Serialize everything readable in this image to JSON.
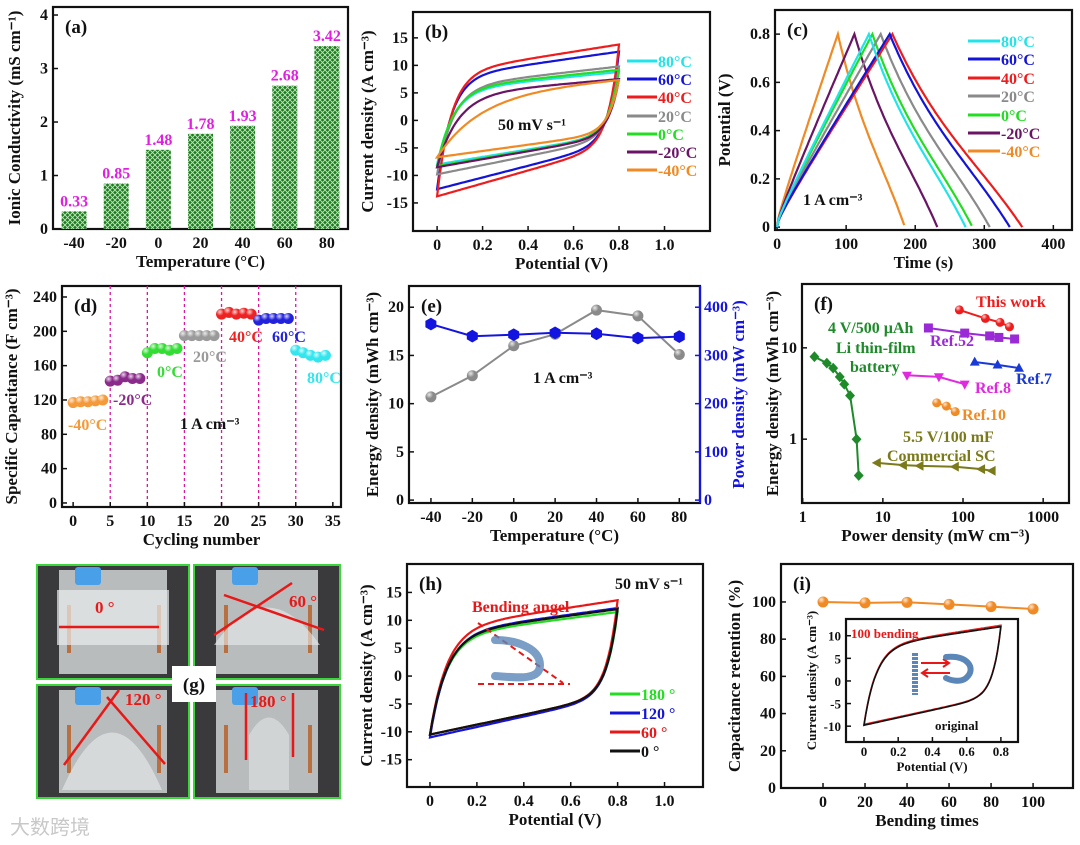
{
  "watermark": "大数跨境",
  "photo_panel": {
    "panel_label": "(g)",
    "angles": [
      "0 °",
      "60 °",
      "120 °",
      "180 °"
    ],
    "line_color": "#e81818",
    "frame_color": "#3ad63a"
  },
  "chart_data": [
    {
      "id": "a",
      "panel_label": "(a)",
      "type": "bar",
      "xlabel": "Temperature (°C)",
      "ylabel": "Ionic Conductivity (mS cm⁻¹)",
      "categories": [
        "-40",
        "-20",
        "0",
        "20",
        "40",
        "60",
        "80"
      ],
      "values": [
        0.33,
        0.85,
        1.48,
        1.78,
        1.93,
        2.68,
        3.42
      ],
      "value_labels": [
        "0.33",
        "0.85",
        "1.48",
        "1.78",
        "1.93",
        "2.68",
        "3.42"
      ],
      "ylim": [
        0,
        4.15
      ],
      "yticks": [
        "0",
        "1",
        "2",
        "3",
        "4"
      ],
      "bar_color": "#1d7a1d",
      "label_color": "#e01fe0"
    },
    {
      "id": "b",
      "panel_label": "(b)",
      "type": "cv",
      "xlabel": "Potential (V)",
      "ylabel": "Current density (A cm⁻³)",
      "xlim": [
        -0.106,
        1.2
      ],
      "ylim": [
        -20.1,
        19.7
      ],
      "xticks": [
        "0",
        "0.2",
        "0.4",
        "0.6",
        "0.8",
        "1.0"
      ],
      "yticks": [
        "-15",
        "-10",
        "-5",
        "0",
        "5",
        "10",
        "15"
      ],
      "legend": "right",
      "annotations": [
        {
          "text": "50 mV s⁻¹",
          "color": "#111111"
        }
      ],
      "series": [
        {
          "name": "80°C",
          "color": "#22e4e8",
          "i_max": 8.8,
          "i_min": -8.0,
          "tau_V": 0.07
        },
        {
          "name": "60°C",
          "color": "#1414d8",
          "i_max": 12.5,
          "i_min": -12.5,
          "tau_V": 0.06
        },
        {
          "name": "40°C",
          "color": "#ee1c1c",
          "i_max": 13.8,
          "i_min": -13.8,
          "tau_V": 0.06
        },
        {
          "name": "20°C",
          "color": "#8a8a8a",
          "i_max": 9.8,
          "i_min": -9.8,
          "tau_V": 0.07
        },
        {
          "name": "0°C",
          "color": "#22dd22",
          "i_max": 9.2,
          "i_min": -8.3,
          "tau_V": 0.07
        },
        {
          "name": "-20°C",
          "color": "#6a1466",
          "i_max": 7.5,
          "i_min": -8.5,
          "tau_V": 0.09
        },
        {
          "name": "-40°C",
          "color": "#f08a24",
          "i_max": 7.5,
          "i_min": -6.7,
          "tau_V": 0.18
        }
      ]
    },
    {
      "id": "c",
      "panel_label": "(c)",
      "type": "gcd",
      "xlabel": "Time (s)",
      "ylabel": "Potential (V)",
      "xlim": [
        -3,
        427
      ],
      "ylim": [
        -0.012,
        0.9
      ],
      "xticks": [
        "0",
        "100",
        "200",
        "300",
        "400"
      ],
      "yticks": [
        "0",
        "0.2",
        "0.4",
        "0.6",
        "0.8"
      ],
      "legend": "right",
      "annotations": [
        {
          "text": "1 A cm⁻³",
          "color": "#111111"
        }
      ],
      "series": [
        {
          "name": "80°C",
          "color": "#22e4e8",
          "t_peak": 133,
          "t_end": 273,
          "v_max": 0.8
        },
        {
          "name": "60°C",
          "color": "#1414d8",
          "t_peak": 163,
          "t_end": 337,
          "v_max": 0.8
        },
        {
          "name": "40°C",
          "color": "#ee1c1c",
          "t_peak": 167,
          "t_end": 355,
          "v_max": 0.8
        },
        {
          "name": "20°C",
          "color": "#8a8a8a",
          "t_peak": 150,
          "t_end": 308,
          "v_max": 0.8
        },
        {
          "name": "0°C",
          "color": "#22dd22",
          "t_peak": 138,
          "t_end": 283,
          "v_max": 0.8
        },
        {
          "name": "-20°C",
          "color": "#6a1466",
          "t_peak": 112,
          "t_end": 232,
          "v_max": 0.8
        },
        {
          "name": "-40°C",
          "color": "#f08a24",
          "t_peak": 88,
          "t_end": 185,
          "v_max": 0.8
        }
      ]
    },
    {
      "id": "d",
      "panel_label": "(d)",
      "type": "scatter",
      "xlabel": "Cycling number",
      "ylabel": "Specific Capacitance (F cm⁻³)",
      "xlim": [
        -1.5,
        36.1
      ],
      "ylim": [
        -4.7,
        252.8
      ],
      "xticks": [
        "0",
        "5",
        "10",
        "15",
        "20",
        "25",
        "30",
        "35"
      ],
      "yticks": [
        "0",
        "40",
        "80",
        "120",
        "160",
        "200",
        "240"
      ],
      "dividers": [
        5,
        10,
        15,
        20,
        25,
        30
      ],
      "divider_color": "#d61a9a",
      "annotations": [
        {
          "text": "1 A cm⁻³",
          "color": "#111111"
        }
      ],
      "series": [
        {
          "name": "-40°C",
          "color": "#f59a3a",
          "marker": "circle",
          "x": [
            0,
            1,
            2,
            3,
            4
          ],
          "y": [
            117,
            118,
            118,
            119,
            120
          ]
        },
        {
          "name": "-20°C",
          "color": "#8a2a8a",
          "marker": "circle",
          "x": [
            5,
            6,
            7,
            8,
            9
          ],
          "y": [
            142,
            143,
            147,
            145,
            145
          ]
        },
        {
          "name": "0°C",
          "color": "#33dd33",
          "marker": "circle",
          "x": [
            10,
            11,
            12,
            13,
            14
          ],
          "y": [
            175,
            180,
            180,
            178,
            180
          ]
        },
        {
          "name": "20°C",
          "color": "#9a9a9a",
          "marker": "circle",
          "x": [
            15,
            16,
            17,
            18,
            19
          ],
          "y": [
            195,
            195,
            195,
            195,
            195
          ]
        },
        {
          "name": "40°C",
          "color": "#ee2222",
          "marker": "circle",
          "x": [
            20,
            21,
            22,
            23,
            24
          ],
          "y": [
            220,
            222,
            220,
            221,
            220
          ]
        },
        {
          "name": "60°C",
          "color": "#2222dd",
          "marker": "circle",
          "x": [
            25,
            26,
            27,
            28,
            29
          ],
          "y": [
            213,
            215,
            215,
            215,
            215
          ]
        },
        {
          "name": "80°C",
          "color": "#33e6ee",
          "marker": "circle",
          "x": [
            30,
            31,
            32,
            33,
            34
          ],
          "y": [
            178,
            175,
            172,
            170,
            172
          ]
        }
      ]
    },
    {
      "id": "e",
      "panel_label": "(e)",
      "type": "line",
      "xlabel": "Temperature (°C)",
      "ylabel": "Energy density (mWh cm⁻³)",
      "y2label": "Power density (mW cm⁻³)",
      "xlim": [
        -50.6,
        90
      ],
      "ylim": [
        -0.3,
        22.2
      ],
      "y2lim": [
        -6,
        444
      ],
      "xticks": [
        "-40",
        "-20",
        "0",
        "20",
        "40",
        "60",
        "80"
      ],
      "yticks": [
        "0",
        "5",
        "10",
        "15",
        "20"
      ],
      "y2ticks": [
        "0",
        "100",
        "200",
        "300",
        "400"
      ],
      "y2color": "#1414e0",
      "annotations": [
        {
          "text": "1 A cm⁻³",
          "color": "#111111"
        }
      ],
      "series": [
        {
          "name": "Energy density",
          "color": "#8a8a8a",
          "marker": "circle",
          "axis": "left",
          "x": [
            -40,
            -20,
            0,
            20,
            40,
            60,
            80
          ],
          "y": [
            10.7,
            12.9,
            16.0,
            17.2,
            19.7,
            19.1,
            15.1
          ]
        },
        {
          "name": "Power density",
          "color": "#1414e0",
          "marker": "hexagon",
          "axis": "right",
          "x": [
            -40,
            -20,
            0,
            20,
            40,
            60,
            80
          ],
          "y": [
            365,
            340,
            343,
            347,
            345,
            336,
            339
          ]
        }
      ]
    },
    {
      "id": "f",
      "panel_label": "(f)",
      "type": "line",
      "xlabel": "Power density (mW cm⁻³)",
      "ylabel": "Energy density (mWh cm⁻³)",
      "xscale": "log",
      "yscale": "log",
      "xlim": [
        0.98,
        2100
      ],
      "ylim": [
        0.2,
        50
      ],
      "xticks": [
        "1",
        "10",
        "100",
        "1000"
      ],
      "yticks": [
        "1",
        "10"
      ],
      "series": [
        {
          "name": "This work",
          "label_lines": [
            "This work"
          ],
          "color": "#ee1c1c",
          "marker": "circle",
          "x": [
            90,
            190,
            290,
            380
          ],
          "y": [
            26,
            21,
            19,
            17
          ]
        },
        {
          "name": "Ref.52",
          "label_lines": [
            "Ref.52"
          ],
          "color": "#9a2ad6",
          "marker": "square",
          "x": [
            37,
            105,
            215,
            280,
            440
          ],
          "y": [
            16.5,
            14.5,
            13.5,
            13,
            12.5
          ]
        },
        {
          "name": "Ref.7",
          "label_lines": [
            "Ref.7"
          ],
          "color": "#1a3ad6",
          "marker": "triangle-up",
          "x": [
            140,
            270,
            500
          ],
          "y": [
            7,
            6.5,
            6
          ]
        },
        {
          "name": "Ref.8",
          "label_lines": [
            "Ref.8"
          ],
          "color": "#e02ae0",
          "marker": "triangle-down",
          "x": [
            20,
            50,
            105
          ],
          "y": [
            5,
            4.8,
            4
          ]
        },
        {
          "name": "Ref.10",
          "label_lines": [
            "Ref.10"
          ],
          "color": "#f08a24",
          "marker": "circle",
          "x": [
            47,
            62,
            80
          ],
          "y": [
            2.5,
            2.3,
            2
          ]
        },
        {
          "name": "4 V/500 µAh Li thin-film battery",
          "label_lines": [
            "4 V/500 µAh",
            "Li thin-film",
            "battery"
          ],
          "color": "#1e8a2a",
          "marker": "diamond",
          "x": [
            1.4,
            2,
            2.4,
            2.9,
            3.3,
            3.9,
            4.7,
            5
          ],
          "y": [
            8,
            6.8,
            6,
            4.8,
            4,
            3,
            1,
            0.4
          ]
        },
        {
          "name": "5.5 V/100 mF Commercial SC",
          "label_lines": [
            "5.5 V/100 mF",
            "Commercial SC"
          ],
          "color": "#7a7a1a",
          "marker": "triangle-left",
          "x": [
            8.5,
            18,
            29,
            80,
            170,
            230
          ],
          "y": [
            0.55,
            0.52,
            0.51,
            0.5,
            0.47,
            0.45
          ]
        }
      ]
    },
    {
      "id": "h",
      "panel_label": "(h)",
      "type": "cv",
      "xlabel": "Potential (V)",
      "ylabel": "Current density (A cm⁻³)",
      "xlim": [
        -0.098,
        1.164
      ],
      "ylim": [
        -19.9,
        20.1
      ],
      "xticks": [
        "0",
        "0.2",
        "0.4",
        "0.6",
        "0.8",
        "1.0"
      ],
      "yticks": [
        "-15",
        "-10",
        "-5",
        "0",
        "5",
        "10",
        "15"
      ],
      "legend": "bottom-right",
      "annotations": [
        {
          "text": "50 mV s⁻¹",
          "color": "#111111"
        },
        {
          "text": "Bending angel",
          "color": "#e81818"
        }
      ],
      "series": [
        {
          "name": "180 °",
          "color": "#22dd22",
          "i_max": 11.5,
          "i_min": -10.5,
          "tau_V": 0.07
        },
        {
          "name": "120 °",
          "color": "#1414d8",
          "i_max": 12.2,
          "i_min": -11.0,
          "tau_V": 0.07
        },
        {
          "name": "60 °",
          "color": "#e81818",
          "i_max": 13.6,
          "i_min": -10.5,
          "tau_V": 0.07
        },
        {
          "name": "0 °",
          "color": "#111111",
          "i_max": 12.0,
          "i_min": -10.5,
          "tau_V": 0.07
        }
      ]
    },
    {
      "id": "i",
      "panel_label": "(i)",
      "type": "line",
      "xlabel": "Bending times",
      "ylabel": "Capacitance  retention (%)",
      "xlim": [
        -20,
        119
      ],
      "ylim": [
        0,
        120.4
      ],
      "xticks": [
        "0",
        "20",
        "40",
        "60",
        "80",
        "100"
      ],
      "yticks": [
        "0",
        "20",
        "40",
        "60",
        "80",
        "100"
      ],
      "series": [
        {
          "name": "Capacitance retention",
          "color": "#f08a24",
          "marker": "circle",
          "x": [
            0,
            20,
            40,
            60,
            80,
            100
          ],
          "y": [
            100,
            99.5,
            99.8,
            98.7,
            97.5,
            96.2
          ]
        }
      ]
    },
    {
      "id": "iin",
      "panel_label": "",
      "type": "cv",
      "inset_of": "i",
      "xlabel": "Potential (V)",
      "ylabel": "Current density (A cm⁻³)",
      "xlim": [
        -0.105,
        0.9
      ],
      "ylim": [
        -13.5,
        13.7
      ],
      "xticks": [
        "0",
        "0.2",
        "0.4",
        "0.6",
        "0.8"
      ],
      "yticks": [
        "-10",
        "-5",
        "0",
        "5",
        "10"
      ],
      "annotations": [
        {
          "text": "100 bending",
          "color": "#e81818"
        },
        {
          "text": "original",
          "color": "#111111"
        }
      ],
      "series": [
        {
          "name": "100 bending",
          "color": "#e81818",
          "i_max": 12.3,
          "i_min": -9.6,
          "tau_V": 0.07
        },
        {
          "name": "original",
          "color": "#111111",
          "i_max": 12.0,
          "i_min": -9.8,
          "tau_V": 0.07
        }
      ]
    }
  ]
}
